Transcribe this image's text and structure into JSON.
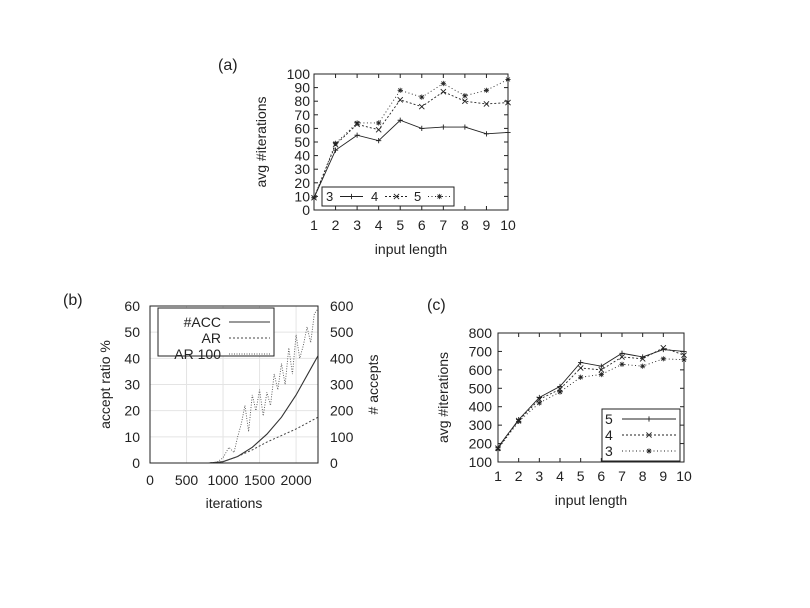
{
  "panel_labels": {
    "a": "(a)",
    "b": "(b)",
    "c": "(c)"
  },
  "colors": {
    "ink": "#222222",
    "grid": "#e4e4e4"
  },
  "chart_data": [
    {
      "id": "a",
      "type": "line",
      "xlabel": "input length",
      "ylabel": "avg #iterations",
      "x": [
        1,
        2,
        3,
        4,
        5,
        6,
        7,
        8,
        9,
        10
      ],
      "xlim": [
        1,
        10
      ],
      "ylim": [
        0,
        100
      ],
      "xticks": [
        1,
        2,
        3,
        4,
        5,
        6,
        7,
        8,
        9,
        10
      ],
      "yticks": [
        0,
        10,
        20,
        30,
        40,
        50,
        60,
        70,
        80,
        90,
        100
      ],
      "legend_position": "bottom",
      "series": [
        {
          "name": "3",
          "values": [
            9,
            44,
            55,
            51,
            66,
            60,
            61,
            61,
            56,
            57
          ]
        },
        {
          "name": "4",
          "values": [
            9,
            48,
            63,
            59,
            81,
            76,
            87,
            80,
            78,
            79
          ]
        },
        {
          "name": "5",
          "values": [
            9,
            49,
            64,
            64,
            88,
            83,
            93,
            84,
            88,
            96
          ]
        }
      ]
    },
    {
      "id": "b",
      "type": "line",
      "xlabel": "iterations",
      "ylabel": "accept ratio %",
      "y2label": "# accepts",
      "xlim": [
        0,
        2300
      ],
      "ylim": [
        0,
        60
      ],
      "y2lim": [
        0,
        600
      ],
      "xticks": [
        0,
        500,
        1000,
        1500,
        2000
      ],
      "yticks": [
        0,
        10,
        20,
        30,
        40,
        50,
        60
      ],
      "y2ticks": [
        0,
        100,
        200,
        300,
        400,
        500,
        600
      ],
      "grid": true,
      "legend_position": "top-left",
      "series": [
        {
          "name": "#ACC",
          "axis": "right",
          "x": [
            0,
            800,
            1000,
            1200,
            1400,
            1600,
            1800,
            2000,
            2200,
            2300
          ],
          "values": [
            0,
            0,
            5,
            25,
            60,
            110,
            175,
            260,
            360,
            410
          ]
        },
        {
          "name": "AR",
          "axis": "left",
          "x": [
            0,
            800,
            1000,
            1200,
            1400,
            1600,
            1800,
            2000,
            2200,
            2300
          ],
          "values": [
            0,
            0,
            0.5,
            2.5,
            5,
            8,
            10.5,
            13,
            16,
            17.5
          ]
        },
        {
          "name": "AR 100",
          "axis": "left",
          "x": [
            0,
            900,
            1000,
            1080,
            1150,
            1200,
            1250,
            1300,
            1350,
            1400,
            1450,
            1500,
            1550,
            1600,
            1650,
            1700,
            1750,
            1800,
            1850,
            1900,
            1950,
            2000,
            2050,
            2100,
            2150,
            2200,
            2250,
            2300
          ],
          "values": [
            0,
            0,
            2,
            6,
            4,
            10,
            15,
            22,
            12,
            26,
            20,
            28,
            18,
            27,
            22,
            34,
            28,
            38,
            30,
            44,
            34,
            49,
            40,
            45,
            52,
            46,
            57,
            59
          ]
        }
      ]
    },
    {
      "id": "c",
      "type": "line",
      "xlabel": "input length",
      "ylabel": "avg #iterations",
      "x": [
        1,
        2,
        3,
        4,
        5,
        6,
        7,
        8,
        9,
        10
      ],
      "xlim": [
        1,
        10
      ],
      "ylim": [
        100,
        800
      ],
      "xticks": [
        1,
        2,
        3,
        4,
        5,
        6,
        7,
        8,
        9,
        10
      ],
      "yticks": [
        100,
        200,
        300,
        400,
        500,
        600,
        700,
        800
      ],
      "legend_position": "bottom-right",
      "series": [
        {
          "name": "5",
          "values": [
            180,
            330,
            450,
            510,
            640,
            620,
            690,
            670,
            710,
            700
          ]
        },
        {
          "name": "4",
          "values": [
            175,
            325,
            440,
            495,
            610,
            600,
            670,
            660,
            720,
            680
          ]
        },
        {
          "name": "3",
          "values": [
            170,
            320,
            420,
            480,
            560,
            575,
            630,
            620,
            660,
            655
          ]
        }
      ]
    }
  ]
}
